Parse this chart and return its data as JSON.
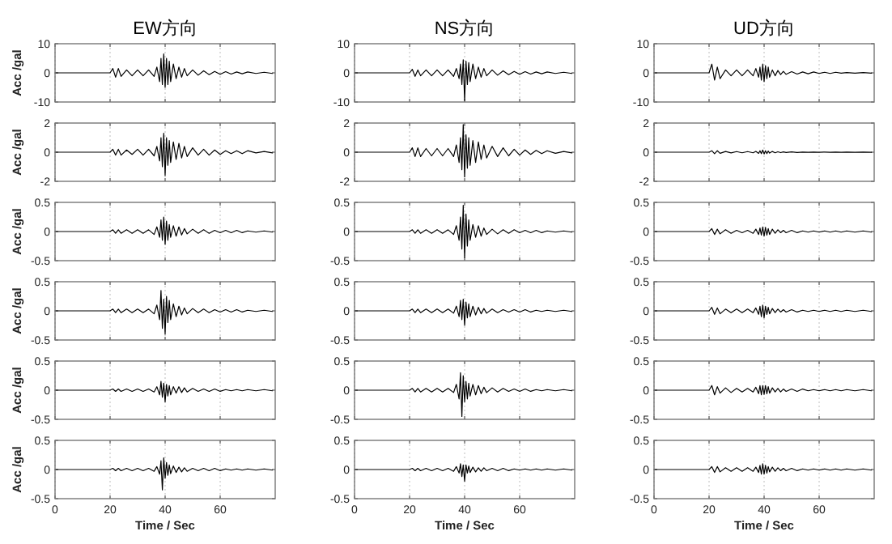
{
  "chart_data": [
    {
      "type": "line",
      "title": "EW方向",
      "ylabel": "Acc /gal",
      "x": [
        0,
        20,
        21,
        22,
        23,
        24,
        26,
        28,
        30,
        32,
        34,
        36,
        37,
        38,
        38.5,
        39,
        39.5,
        40,
        40.5,
        41,
        41.5,
        42,
        43,
        44,
        45,
        46,
        47,
        48,
        50,
        52,
        54,
        56,
        58,
        60,
        62,
        64,
        66,
        68,
        70,
        73,
        76,
        79
      ],
      "values": [
        0,
        0,
        1.5,
        -1.5,
        1.5,
        -1.2,
        1,
        -1,
        1,
        -1,
        1,
        -1.2,
        2,
        -3,
        5,
        -4,
        6.5,
        -5,
        5,
        -4,
        4,
        -3,
        3,
        -2,
        2,
        -1.5,
        1.5,
        -1,
        1,
        -0.8,
        0.7,
        -0.6,
        0.5,
        -0.5,
        0.4,
        -0.4,
        0.3,
        -0.3,
        0.3,
        -0.2,
        0.2,
        -0.2
      ],
      "xlim": [
        0,
        80
      ],
      "ylim": [
        -10,
        10
      ],
      "yticks": [
        -10,
        0,
        10
      ],
      "xticks": [
        0,
        20,
        40,
        60
      ],
      "grid": "x",
      "tick_labels": "y"
    },
    {
      "type": "line",
      "title": "NS方向",
      "x": [
        0,
        20,
        21,
        22,
        23,
        24,
        26,
        28,
        30,
        32,
        34,
        36,
        37,
        38,
        38.5,
        39,
        39.5,
        40,
        40.5,
        41,
        41.5,
        42,
        43,
        44,
        45,
        46,
        47,
        48,
        50,
        52,
        54,
        56,
        58,
        60,
        62,
        64,
        66,
        68,
        70,
        73,
        76,
        79
      ],
      "values": [
        0,
        0,
        1.2,
        -1.2,
        1,
        -1,
        1,
        -1,
        1,
        -1,
        1,
        -1.2,
        1.5,
        -2,
        3,
        -4,
        4.5,
        -9.5,
        4,
        -4,
        3.5,
        -3,
        3,
        -2,
        2,
        -1.5,
        1.5,
        -1,
        1,
        -0.8,
        0.7,
        -0.6,
        0.5,
        -0.5,
        0.4,
        -0.4,
        0.3,
        -0.3,
        0.3,
        -0.2,
        0.2,
        -0.2
      ],
      "xlim": [
        0,
        80
      ],
      "ylim": [
        -10,
        10
      ],
      "yticks": [
        -10,
        0,
        10
      ],
      "xticks": [
        0,
        20,
        40,
        60
      ],
      "grid": "x",
      "tick_labels": "y"
    },
    {
      "type": "line",
      "title": "UD方向",
      "x": [
        0,
        20,
        21,
        22,
        23,
        24,
        26,
        28,
        30,
        32,
        34,
        36,
        37,
        38,
        38.5,
        39,
        39.5,
        40,
        40.5,
        41,
        41.5,
        42,
        43,
        44,
        45,
        46,
        47,
        48,
        50,
        52,
        54,
        56,
        58,
        60,
        62,
        64,
        66,
        68,
        70,
        73,
        76,
        79
      ],
      "values": [
        0,
        0,
        3,
        -2.5,
        2,
        -2,
        1,
        -1,
        1,
        -1,
        1,
        -1,
        1.5,
        -1.5,
        2,
        -2.5,
        3,
        -3,
        2.5,
        -2,
        2,
        -1.5,
        1,
        -1,
        0.8,
        -0.6,
        0.5,
        -0.5,
        0.4,
        -0.4,
        0.3,
        -0.3,
        0.3,
        -0.2,
        0.2,
        -0.2,
        0.2,
        -0.1,
        0.1,
        -0.1,
        0.1,
        -0.1
      ],
      "xlim": [
        0,
        80
      ],
      "ylim": [
        -10,
        10
      ],
      "yticks": [
        -10,
        0,
        10
      ],
      "xticks": [
        0,
        20,
        40,
        60
      ],
      "grid": "x",
      "tick_labels": "y"
    },
    {
      "type": "line",
      "ylabel": "Acc /gal",
      "x": [
        0,
        20,
        21,
        22,
        23,
        24,
        26,
        28,
        30,
        32,
        34,
        36,
        37,
        38,
        38.5,
        39,
        39.5,
        40,
        40.5,
        41,
        41.5,
        42,
        43,
        44,
        45,
        46,
        47,
        48,
        50,
        52,
        54,
        56,
        58,
        60,
        62,
        64,
        66,
        68,
        70,
        73,
        76,
        79
      ],
      "values": [
        0,
        0,
        0.2,
        -0.2,
        0.2,
        -0.2,
        0.15,
        -0.15,
        0.2,
        -0.2,
        0.2,
        -0.25,
        0.4,
        -0.6,
        1,
        -1,
        1.3,
        -1.6,
        1,
        -0.9,
        0.8,
        -0.7,
        0.7,
        -0.5,
        0.6,
        -0.4,
        0.4,
        -0.3,
        0.3,
        -0.2,
        0.2,
        -0.2,
        0.15,
        -0.15,
        0.1,
        -0.1,
        0.1,
        -0.1,
        0.1,
        -0.05,
        0.05,
        -0.05
      ],
      "xlim": [
        0,
        80
      ],
      "ylim": [
        -2,
        2
      ],
      "yticks": [
        -2,
        0,
        2
      ],
      "xticks": [
        0,
        20,
        40,
        60
      ],
      "grid": "x",
      "tick_labels": "y"
    },
    {
      "type": "line",
      "x": [
        0,
        20,
        21,
        22,
        23,
        24,
        26,
        28,
        30,
        32,
        34,
        36,
        37,
        38,
        38.5,
        39,
        39.5,
        40,
        40.5,
        41,
        41.5,
        42,
        43,
        44,
        45,
        46,
        47,
        48,
        50,
        52,
        54,
        56,
        58,
        60,
        62,
        64,
        66,
        68,
        70,
        73,
        76,
        79
      ],
      "values": [
        0,
        0,
        0.3,
        -0.3,
        0.3,
        -0.3,
        0.25,
        -0.25,
        0.25,
        -0.25,
        0.25,
        -0.3,
        0.5,
        -0.7,
        1,
        -1.2,
        1.9,
        -1.7,
        1.2,
        -1.1,
        1,
        -0.9,
        0.8,
        -0.7,
        0.7,
        -0.5,
        0.5,
        -0.4,
        0.4,
        -0.3,
        0.3,
        -0.25,
        0.2,
        -0.2,
        0.15,
        -0.15,
        0.12,
        -0.1,
        0.1,
        -0.08,
        0.05,
        -0.05
      ],
      "xlim": [
        0,
        80
      ],
      "ylim": [
        -2,
        2
      ],
      "yticks": [
        -2,
        0,
        2
      ],
      "xticks": [
        0,
        20,
        40,
        60
      ],
      "grid": "x",
      "tick_labels": "y"
    },
    {
      "type": "line",
      "x": [
        0,
        20,
        21,
        22,
        23,
        24,
        26,
        28,
        30,
        32,
        34,
        36,
        37,
        38,
        38.5,
        39,
        39.5,
        40,
        40.5,
        41,
        41.5,
        42,
        43,
        44,
        45,
        46,
        47,
        48,
        50,
        52,
        54,
        56,
        58,
        60,
        62,
        64,
        66,
        68,
        70,
        73,
        76,
        79
      ],
      "values": [
        0,
        0,
        0.1,
        -0.1,
        0.1,
        -0.08,
        0.05,
        -0.05,
        0.04,
        -0.04,
        0.04,
        -0.04,
        0.06,
        -0.08,
        0.1,
        -0.1,
        0.15,
        -0.12,
        0.1,
        -0.1,
        0.08,
        -0.06,
        0.05,
        -0.04,
        0.03,
        -0.03,
        0.02,
        -0.02,
        0.02,
        -0.02,
        0.01,
        -0.01,
        0.01,
        -0.01,
        0.01,
        -0.01,
        0.01,
        -0.01,
        0.01,
        -0.01,
        0.01,
        -0.01
      ],
      "xlim": [
        0,
        80
      ],
      "ylim": [
        -2,
        2
      ],
      "yticks": [
        -2,
        0,
        2
      ],
      "xticks": [
        0,
        20,
        40,
        60
      ],
      "grid": "x",
      "tick_labels": "y"
    },
    {
      "type": "line",
      "ylabel": "Acc /gal",
      "x": [
        0,
        20,
        21,
        22,
        23,
        24,
        26,
        28,
        30,
        32,
        34,
        36,
        37,
        38,
        38.5,
        39,
        39.5,
        40,
        40.5,
        41,
        41.5,
        42,
        43,
        44,
        45,
        46,
        47,
        48,
        50,
        52,
        54,
        56,
        58,
        60,
        62,
        64,
        66,
        68,
        70,
        73,
        76,
        79
      ],
      "values": [
        0,
        0,
        0.03,
        -0.03,
        0.03,
        -0.03,
        0.03,
        -0.03,
        0.03,
        -0.03,
        0.03,
        -0.05,
        0.08,
        -0.1,
        0.2,
        -0.15,
        0.25,
        -0.22,
        0.18,
        -0.15,
        0.12,
        -0.1,
        0.1,
        -0.08,
        0.08,
        -0.06,
        0.05,
        -0.04,
        0.04,
        -0.03,
        0.03,
        -0.03,
        0.02,
        -0.02,
        0.02,
        -0.02,
        0.02,
        -0.02,
        0.01,
        -0.01,
        0.01,
        -0.01
      ],
      "xlim": [
        0,
        80
      ],
      "ylim": [
        -0.5,
        0.5
      ],
      "yticks": [
        -0.5,
        0,
        0.5
      ],
      "xticks": [
        0,
        20,
        40,
        60
      ],
      "grid": "x",
      "tick_labels": "y"
    },
    {
      "type": "line",
      "x": [
        0,
        20,
        21,
        22,
        23,
        24,
        26,
        28,
        30,
        32,
        34,
        36,
        37,
        38,
        38.5,
        39,
        39.5,
        40,
        40.5,
        41,
        41.5,
        42,
        43,
        44,
        45,
        46,
        47,
        48,
        50,
        52,
        54,
        56,
        58,
        60,
        62,
        64,
        66,
        68,
        70,
        73,
        76,
        79
      ],
      "values": [
        0,
        0,
        0.03,
        -0.03,
        0.03,
        -0.03,
        0.03,
        -0.03,
        0.03,
        -0.03,
        0.03,
        -0.05,
        0.1,
        -0.15,
        0.25,
        -0.3,
        0.45,
        -0.45,
        0.3,
        -0.25,
        0.2,
        -0.15,
        0.12,
        -0.1,
        0.1,
        -0.08,
        0.06,
        -0.05,
        0.04,
        -0.04,
        0.03,
        -0.03,
        0.03,
        -0.02,
        0.02,
        -0.02,
        0.02,
        -0.02,
        0.01,
        -0.01,
        0.01,
        -0.01
      ],
      "xlim": [
        0,
        80
      ],
      "ylim": [
        -0.5,
        0.5
      ],
      "yticks": [
        -0.5,
        0,
        0.5
      ],
      "xticks": [
        0,
        20,
        40,
        60
      ],
      "grid": "x",
      "tick_labels": "y"
    },
    {
      "type": "line",
      "x": [
        0,
        20,
        21,
        22,
        23,
        24,
        26,
        28,
        30,
        32,
        34,
        36,
        37,
        38,
        38.5,
        39,
        39.5,
        40,
        40.5,
        41,
        41.5,
        42,
        43,
        44,
        45,
        46,
        47,
        48,
        50,
        52,
        54,
        56,
        58,
        60,
        62,
        64,
        66,
        68,
        70,
        73,
        76,
        79
      ],
      "values": [
        0,
        0,
        0.05,
        -0.05,
        0.04,
        -0.04,
        0.03,
        -0.03,
        0.02,
        -0.02,
        0.02,
        -0.03,
        0.04,
        -0.05,
        0.06,
        -0.06,
        0.08,
        -0.08,
        0.07,
        -0.06,
        0.05,
        -0.05,
        0.04,
        -0.03,
        0.03,
        -0.02,
        0.02,
        -0.02,
        0.02,
        -0.02,
        0.01,
        -0.01,
        0.01,
        -0.01,
        0.01,
        -0.01,
        0.01,
        -0.01,
        0.01,
        -0.01,
        0.01,
        -0.01
      ],
      "xlim": [
        0,
        80
      ],
      "ylim": [
        -0.5,
        0.5
      ],
      "yticks": [
        -0.5,
        0,
        0.5
      ],
      "xticks": [
        0,
        20,
        40,
        60
      ],
      "grid": "x",
      "tick_labels": "y"
    },
    {
      "type": "line",
      "ylabel": "Acc /gal",
      "x": [
        0,
        20,
        21,
        22,
        23,
        24,
        26,
        28,
        30,
        32,
        34,
        36,
        37,
        38,
        38.5,
        39,
        39.5,
        40,
        40.5,
        41,
        41.5,
        42,
        43,
        44,
        45,
        46,
        47,
        48,
        50,
        52,
        54,
        56,
        58,
        60,
        62,
        64,
        66,
        68,
        70,
        73,
        76,
        79
      ],
      "values": [
        0,
        0,
        0.03,
        -0.03,
        0.03,
        -0.03,
        0.03,
        -0.03,
        0.03,
        -0.03,
        0.03,
        -0.05,
        0.1,
        -0.15,
        0.35,
        -0.3,
        0.2,
        -0.4,
        0.25,
        -0.2,
        0.18,
        -0.15,
        0.12,
        -0.1,
        0.08,
        -0.07,
        0.05,
        -0.05,
        0.04,
        -0.03,
        0.03,
        -0.03,
        0.02,
        -0.02,
        0.02,
        -0.02,
        0.02,
        -0.02,
        0.01,
        -0.01,
        0.01,
        -0.01
      ],
      "xlim": [
        0,
        80
      ],
      "ylim": [
        -0.5,
        0.5
      ],
      "yticks": [
        -0.5,
        0,
        0.5
      ],
      "xticks": [
        0,
        20,
        40,
        60
      ],
      "grid": "x",
      "tick_labels": "y"
    },
    {
      "type": "line",
      "x": [
        0,
        20,
        21,
        22,
        23,
        24,
        26,
        28,
        30,
        32,
        34,
        36,
        37,
        38,
        38.5,
        39,
        39.5,
        40,
        40.5,
        41,
        41.5,
        42,
        43,
        44,
        45,
        46,
        47,
        48,
        50,
        52,
        54,
        56,
        58,
        60,
        62,
        64,
        66,
        68,
        70,
        73,
        76,
        79
      ],
      "values": [
        0,
        0,
        0.03,
        -0.03,
        0.03,
        -0.03,
        0.03,
        -0.03,
        0.03,
        -0.03,
        0.03,
        -0.04,
        0.08,
        -0.1,
        0.18,
        -0.15,
        0.2,
        -0.25,
        0.15,
        -0.12,
        0.12,
        -0.1,
        0.08,
        -0.07,
        0.06,
        -0.05,
        0.04,
        -0.04,
        0.03,
        -0.03,
        0.02,
        -0.02,
        0.02,
        -0.02,
        0.02,
        -0.02,
        0.01,
        -0.01,
        0.01,
        -0.01,
        0.01,
        -0.01
      ],
      "xlim": [
        0,
        80
      ],
      "ylim": [
        -0.5,
        0.5
      ],
      "yticks": [
        -0.5,
        0,
        0.5
      ],
      "xticks": [
        0,
        20,
        40,
        60
      ],
      "grid": "x",
      "tick_labels": "y"
    },
    {
      "type": "line",
      "x": [
        0,
        20,
        21,
        22,
        23,
        24,
        26,
        28,
        30,
        32,
        34,
        36,
        37,
        38,
        38.5,
        39,
        39.5,
        40,
        40.5,
        41,
        41.5,
        42,
        43,
        44,
        45,
        46,
        47,
        48,
        50,
        52,
        54,
        56,
        58,
        60,
        62,
        64,
        66,
        68,
        70,
        73,
        76,
        79
      ],
      "values": [
        0,
        0,
        0.06,
        -0.06,
        0.05,
        -0.05,
        0.03,
        -0.03,
        0.03,
        -0.03,
        0.03,
        -0.03,
        0.05,
        -0.06,
        0.08,
        -0.1,
        0.1,
        -0.12,
        0.08,
        -0.06,
        0.06,
        -0.05,
        0.04,
        -0.03,
        0.03,
        -0.02,
        0.02,
        -0.02,
        0.02,
        -0.02,
        0.01,
        -0.01,
        0.01,
        -0.01,
        0.01,
        -0.01,
        0.01,
        -0.01,
        0.01,
        -0.01,
        0.01,
        -0.01
      ],
      "xlim": [
        0,
        80
      ],
      "ylim": [
        -0.5,
        0.5
      ],
      "yticks": [
        -0.5,
        0,
        0.5
      ],
      "xticks": [
        0,
        20,
        40,
        60
      ],
      "grid": "x",
      "tick_labels": "y"
    },
    {
      "type": "line",
      "ylabel": "Acc /gal",
      "x": [
        0,
        20,
        21,
        22,
        23,
        24,
        26,
        28,
        30,
        32,
        34,
        36,
        37,
        38,
        38.5,
        39,
        39.5,
        40,
        40.5,
        41,
        41.5,
        42,
        43,
        44,
        45,
        46,
        47,
        48,
        50,
        52,
        54,
        56,
        58,
        60,
        62,
        64,
        66,
        68,
        70,
        73,
        76,
        79
      ],
      "values": [
        0,
        0,
        0.02,
        -0.02,
        0.02,
        -0.02,
        0.02,
        -0.02,
        0.02,
        -0.02,
        0.02,
        -0.03,
        0.06,
        -0.08,
        0.15,
        -0.12,
        0.12,
        -0.2,
        0.1,
        -0.1,
        0.08,
        -0.08,
        0.06,
        -0.05,
        0.06,
        -0.04,
        0.04,
        -0.03,
        0.03,
        -0.02,
        0.02,
        -0.02,
        0.02,
        -0.02,
        0.01,
        -0.01,
        0.01,
        -0.01,
        0.01,
        -0.01,
        0.01,
        -0.01
      ],
      "xlim": [
        0,
        80
      ],
      "ylim": [
        -0.5,
        0.5
      ],
      "yticks": [
        -0.5,
        0,
        0.5
      ],
      "xticks": [
        0,
        20,
        40,
        60
      ],
      "grid": "x",
      "tick_labels": "y"
    },
    {
      "type": "line",
      "x": [
        0,
        20,
        21,
        22,
        23,
        24,
        26,
        28,
        30,
        32,
        34,
        36,
        37,
        38,
        38.5,
        39,
        39.5,
        40,
        40.5,
        41,
        41.5,
        42,
        43,
        44,
        45,
        46,
        47,
        48,
        50,
        52,
        54,
        56,
        58,
        60,
        62,
        64,
        66,
        68,
        70,
        73,
        76,
        79
      ],
      "values": [
        0,
        0,
        0.03,
        -0.03,
        0.03,
        -0.03,
        0.03,
        -0.03,
        0.03,
        -0.03,
        0.03,
        -0.04,
        0.1,
        -0.15,
        0.3,
        -0.45,
        0.25,
        -0.2,
        0.15,
        -0.15,
        0.12,
        -0.1,
        0.1,
        -0.08,
        0.08,
        -0.06,
        0.05,
        -0.04,
        0.04,
        -0.03,
        0.03,
        -0.02,
        0.02,
        -0.02,
        0.02,
        -0.02,
        0.01,
        -0.01,
        0.01,
        -0.01,
        0.01,
        -0.01
      ],
      "xlim": [
        0,
        80
      ],
      "ylim": [
        -0.5,
        0.5
      ],
      "yticks": [
        -0.5,
        0,
        0.5
      ],
      "xticks": [
        0,
        20,
        40,
        60
      ],
      "grid": "x",
      "tick_labels": "y"
    },
    {
      "type": "line",
      "x": [
        0,
        20,
        21,
        22,
        23,
        24,
        26,
        28,
        30,
        32,
        34,
        36,
        37,
        38,
        38.5,
        39,
        39.5,
        40,
        40.5,
        41,
        41.5,
        42,
        43,
        44,
        45,
        46,
        47,
        48,
        50,
        52,
        54,
        56,
        58,
        60,
        62,
        64,
        66,
        68,
        70,
        73,
        76,
        79
      ],
      "values": [
        0,
        0,
        0.08,
        -0.08,
        0.06,
        -0.05,
        0.04,
        -0.04,
        0.03,
        -0.03,
        0.03,
        -0.03,
        0.05,
        -0.06,
        0.08,
        -0.08,
        0.08,
        -0.07,
        0.08,
        -0.06,
        0.06,
        -0.05,
        0.04,
        -0.03,
        0.03,
        -0.03,
        0.02,
        -0.02,
        0.02,
        -0.02,
        0.02,
        -0.01,
        0.01,
        -0.01,
        0.01,
        -0.01,
        0.01,
        -0.01,
        0.01,
        -0.01,
        0.01,
        -0.01
      ],
      "xlim": [
        0,
        80
      ],
      "ylim": [
        -0.5,
        0.5
      ],
      "yticks": [
        -0.5,
        0,
        0.5
      ],
      "xticks": [
        0,
        20,
        40,
        60
      ],
      "grid": "x",
      "tick_labels": "y"
    },
    {
      "type": "line",
      "ylabel": "Acc /gal",
      "xlabel": "Time / Sec",
      "x": [
        0,
        20,
        21,
        22,
        23,
        24,
        26,
        28,
        30,
        32,
        34,
        36,
        37,
        38,
        38.5,
        39,
        39.5,
        40,
        40.5,
        41,
        41.5,
        42,
        43,
        44,
        45,
        46,
        47,
        48,
        50,
        52,
        54,
        56,
        58,
        60,
        62,
        64,
        66,
        68,
        70,
        73,
        76,
        79
      ],
      "values": [
        0,
        0,
        0.02,
        -0.02,
        0.02,
        -0.02,
        0.02,
        -0.02,
        0.02,
        -0.02,
        0.02,
        -0.03,
        0.05,
        -0.08,
        0.15,
        -0.35,
        0.2,
        -0.15,
        0.12,
        -0.1,
        0.08,
        -0.07,
        0.06,
        -0.05,
        0.04,
        -0.04,
        0.03,
        -0.03,
        0.02,
        -0.02,
        0.02,
        -0.02,
        0.02,
        -0.02,
        0.01,
        -0.01,
        0.01,
        -0.01,
        0.01,
        -0.01,
        0.01,
        -0.01
      ],
      "xlim": [
        0,
        80
      ],
      "ylim": [
        -0.5,
        0.5
      ],
      "yticks": [
        -0.5,
        0,
        0.5
      ],
      "xticks": [
        0,
        20,
        40,
        60
      ],
      "grid": "x"
    },
    {
      "type": "line",
      "xlabel": "Time / Sec",
      "x": [
        0,
        20,
        21,
        22,
        23,
        24,
        26,
        28,
        30,
        32,
        34,
        36,
        37,
        38,
        38.5,
        39,
        39.5,
        40,
        40.5,
        41,
        41.5,
        42,
        43,
        44,
        45,
        46,
        47,
        48,
        50,
        52,
        54,
        56,
        58,
        60,
        62,
        64,
        66,
        68,
        70,
        73,
        76,
        79
      ],
      "values": [
        0,
        0,
        0.02,
        -0.02,
        0.02,
        -0.02,
        0.02,
        -0.02,
        0.02,
        -0.02,
        0.02,
        -0.03,
        0.05,
        -0.06,
        0.1,
        -0.12,
        0.08,
        -0.2,
        0.08,
        -0.06,
        0.06,
        -0.05,
        0.04,
        -0.04,
        0.03,
        -0.03,
        0.03,
        -0.02,
        0.02,
        -0.02,
        0.02,
        -0.02,
        0.01,
        -0.01,
        0.01,
        -0.01,
        0.01,
        -0.01,
        0.01,
        -0.01,
        0.01,
        -0.01
      ],
      "xlim": [
        0,
        80
      ],
      "ylim": [
        -0.5,
        0.5
      ],
      "yticks": [
        -0.5,
        0,
        0.5
      ],
      "xticks": [
        0,
        20,
        40,
        60
      ],
      "grid": "x"
    },
    {
      "type": "line",
      "xlabel": "Time / Sec",
      "x": [
        0,
        20,
        21,
        22,
        23,
        24,
        26,
        28,
        30,
        32,
        34,
        36,
        37,
        38,
        38.5,
        39,
        39.5,
        40,
        40.5,
        41,
        41.5,
        42,
        43,
        44,
        45,
        46,
        47,
        48,
        50,
        52,
        54,
        56,
        58,
        60,
        62,
        64,
        66,
        68,
        70,
        73,
        76,
        79
      ],
      "values": [
        0,
        0,
        0.05,
        -0.05,
        0.05,
        -0.04,
        0.03,
        -0.03,
        0.03,
        -0.03,
        0.03,
        -0.03,
        0.04,
        -0.05,
        0.07,
        -0.08,
        0.1,
        -0.08,
        0.07,
        -0.06,
        0.05,
        -0.04,
        0.04,
        -0.03,
        0.03,
        -0.02,
        0.02,
        -0.02,
        0.02,
        -0.02,
        0.01,
        -0.01,
        0.01,
        -0.01,
        0.01,
        -0.01,
        0.01,
        -0.01,
        0.01,
        -0.01,
        0.01,
        -0.01
      ],
      "xlim": [
        0,
        80
      ],
      "ylim": [
        -0.5,
        0.5
      ],
      "yticks": [
        -0.5,
        0,
        0.5
      ],
      "xticks": [
        0,
        20,
        40,
        60
      ],
      "grid": "x"
    }
  ]
}
